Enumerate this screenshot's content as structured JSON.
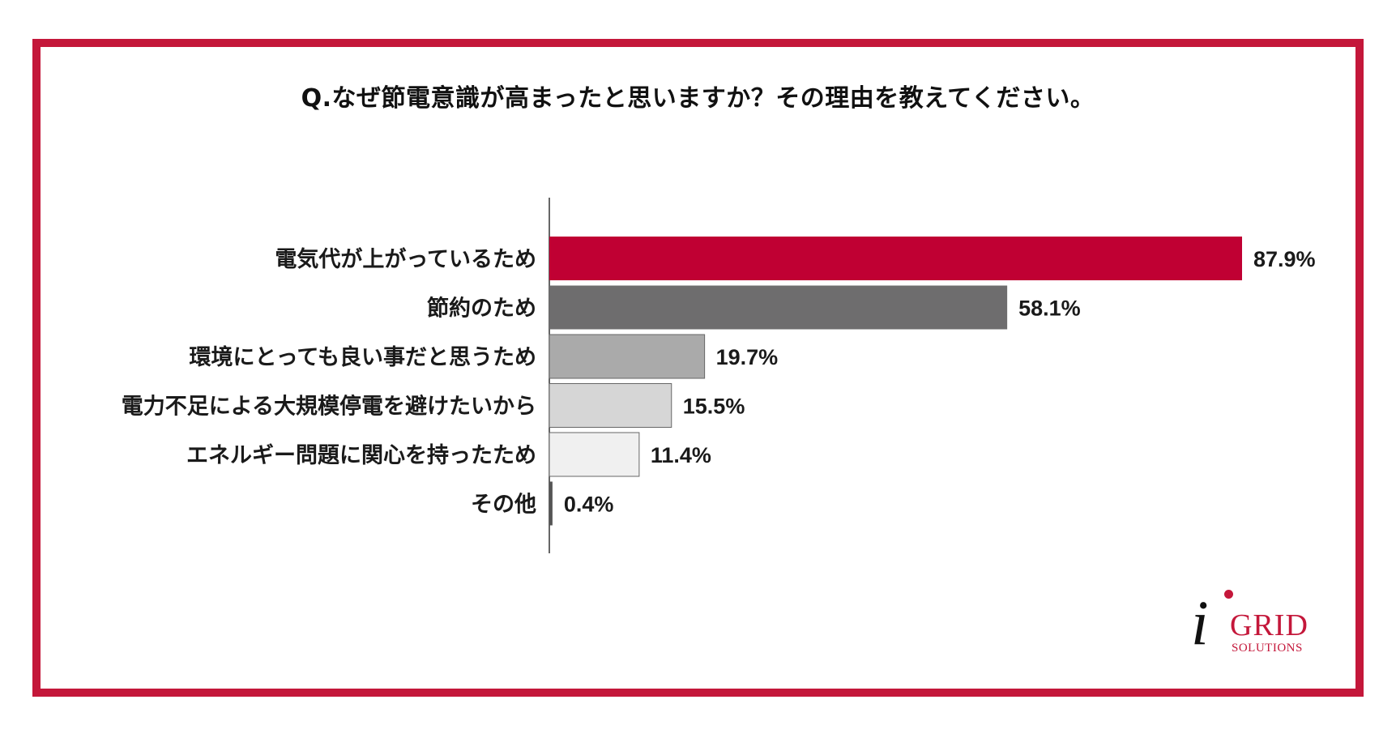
{
  "chart_data": {
    "type": "bar",
    "orientation": "horizontal",
    "title": "Q.なぜ節電意識が高まったと思いますか？その理由を教えてください。",
    "categories": [
      "電気代が上がっているため",
      "節約のため",
      "環境にとっても良い事だと思うため",
      "電力不足による大規模停電を避けたいから",
      "エネルギー問題に関心を持ったため",
      "その他"
    ],
    "values": [
      87.9,
      58.1,
      19.7,
      15.5,
      11.4,
      0.4
    ],
    "value_labels": [
      "87.9%",
      "58.1%",
      "19.7%",
      "15.5%",
      "11.4%",
      "0.4%"
    ],
    "bar_colors": [
      "#c00033",
      "#6e6d6e",
      "#aaaaaa",
      "#d6d6d6",
      "#f0f0f0",
      "#555555"
    ],
    "xlim": [
      0,
      100
    ],
    "grid": false,
    "legend": "none"
  },
  "logo": {
    "letter": "i",
    "name": "GRID",
    "sub": "SOLUTIONS"
  },
  "colors": {
    "frame": "#c4173a",
    "accent": "#c00033"
  }
}
